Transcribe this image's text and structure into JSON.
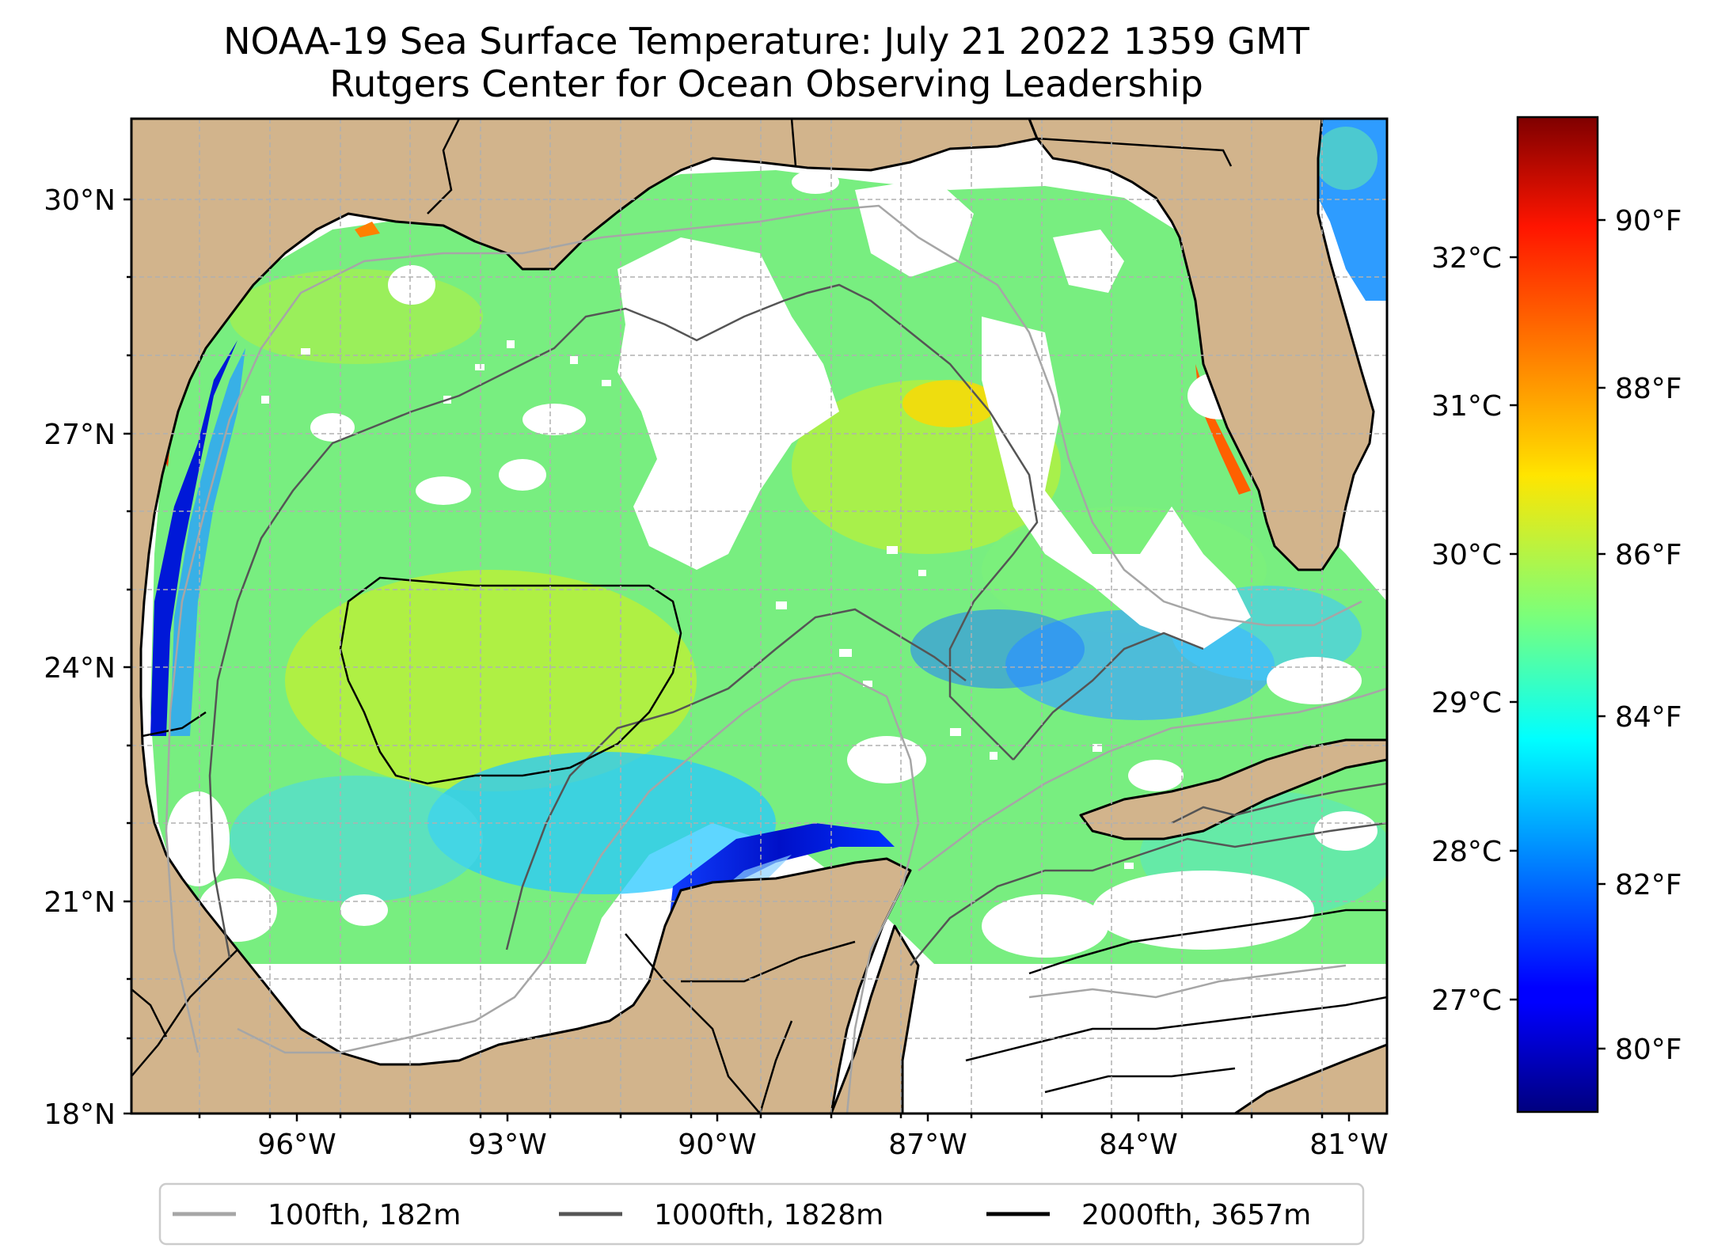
{
  "title": {
    "line1": "NOAA-19 Sea Surface Temperature: July 21 2022 1359 GMT",
    "line2": "Rutgers Center for Ocean Observing Leadership"
  },
  "map": {
    "lon_ticks": [
      "96°W",
      "93°W",
      "90°W",
      "87°W",
      "84°W",
      "81°W"
    ],
    "lat_ticks": [
      "30°N",
      "27°N",
      "24°N",
      "21°N",
      "18°N"
    ],
    "lon_range": [
      -98.3,
      -80.4
    ],
    "lat_range": [
      18,
      31
    ],
    "land_color": "#d2b48c",
    "no_data_color": "#ffffff",
    "gridlines": true
  },
  "colorbar": {
    "colormap": "jet",
    "celsius_ticks": [
      "32°C",
      "31°C",
      "30°C",
      "29°C",
      "28°C",
      "27°C"
    ],
    "fahrenheit_ticks": [
      "90°F",
      "88°F",
      "86°F",
      "84°F",
      "82°F",
      "80°F"
    ],
    "range_f": [
      79.2,
      91.4
    ]
  },
  "legend": {
    "position": "bottom-center",
    "items": [
      {
        "label": "100fth, 182m",
        "color": "#a6a6a6"
      },
      {
        "label": "1000fth, 1828m",
        "color": "#555555"
      },
      {
        "label": "2000fth, 3657m",
        "color": "#000000"
      }
    ]
  }
}
